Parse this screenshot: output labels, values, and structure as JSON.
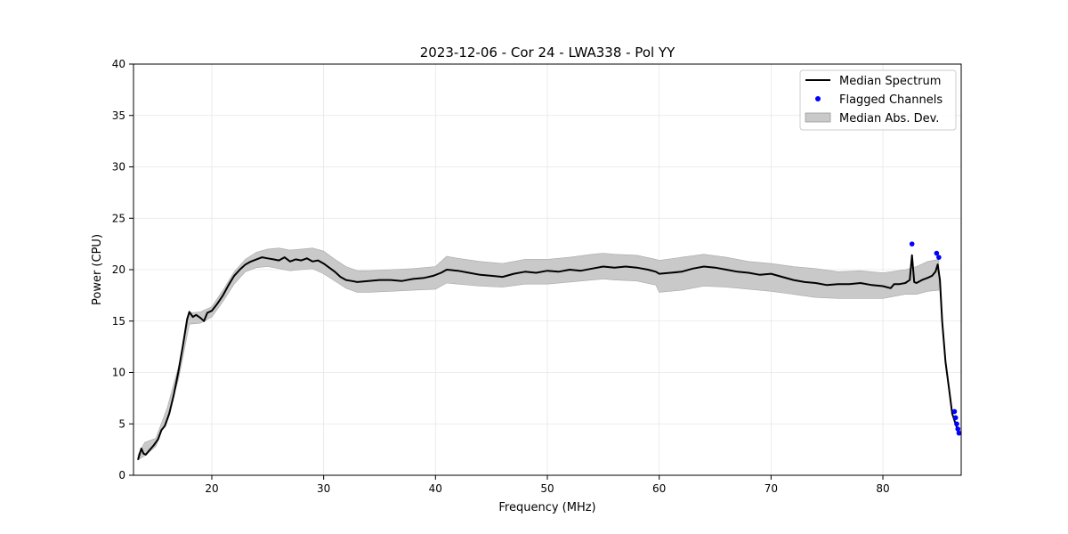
{
  "chart_data": {
    "type": "line",
    "title": "2023-12-06 - Cor 24 - LWA338 - Pol YY",
    "xlabel": "Frequency (MHz)",
    "ylabel": "Power (CPU)",
    "xlim": [
      13,
      87
    ],
    "ylim": [
      0,
      40
    ],
    "xticks": [
      20,
      30,
      40,
      50,
      60,
      70,
      80
    ],
    "yticks": [
      0,
      5,
      10,
      15,
      20,
      25,
      30,
      35,
      40
    ],
    "grid": true,
    "legend": {
      "position": "top-right",
      "entries": [
        "Median Spectrum",
        "Flagged Channels",
        "Median Abs. Dev."
      ]
    },
    "series": [
      {
        "name": "Median Spectrum",
        "kind": "line",
        "color": "#000000",
        "x": [
          13.4,
          13.7,
          13.9,
          14.1,
          14.4,
          14.8,
          15.2,
          15.5,
          15.8,
          16.2,
          16.6,
          17.0,
          17.4,
          17.8,
          18.0,
          18.3,
          18.6,
          19.0,
          19.3,
          19.6,
          20.0,
          20.5,
          21.0,
          21.5,
          22.0,
          22.5,
          23.0,
          23.5,
          24.0,
          24.5,
          25.0,
          25.5,
          26.0,
          26.5,
          27.0,
          27.5,
          28.0,
          28.5,
          29.0,
          29.5,
          30.0,
          30.5,
          31.0,
          31.5,
          32.0,
          32.5,
          33.0,
          34.0,
          35.0,
          36.0,
          37.0,
          38.0,
          39.0,
          39.8,
          40.5,
          41.0,
          42.0,
          43.0,
          44.0,
          45.0,
          46.0,
          47.0,
          48.0,
          49.0,
          50.0,
          51.0,
          52.0,
          53.0,
          54.0,
          55.0,
          56.0,
          57.0,
          58.0,
          59.0,
          59.7,
          60.0,
          61.0,
          62.0,
          63.0,
          64.0,
          65.0,
          66.0,
          67.0,
          68.0,
          69.0,
          70.0,
          71.0,
          72.0,
          73.0,
          74.0,
          75.0,
          76.0,
          77.0,
          78.0,
          79.0,
          80.0,
          80.7,
          81.0,
          81.5,
          82.0,
          82.4,
          82.6,
          82.8,
          83.0,
          83.5,
          84.0,
          84.4,
          84.7,
          84.9,
          85.1,
          85.3,
          85.6,
          85.9,
          86.2,
          86.5,
          86.8
        ],
        "y": [
          1.5,
          2.6,
          2.1,
          2.0,
          2.4,
          2.9,
          3.5,
          4.4,
          4.8,
          6.0,
          7.8,
          10.0,
          12.5,
          15.2,
          15.9,
          15.4,
          15.6,
          15.3,
          15.0,
          15.8,
          16.0,
          16.7,
          17.5,
          18.5,
          19.4,
          20.0,
          20.5,
          20.8,
          21.0,
          21.2,
          21.1,
          21.0,
          20.9,
          21.2,
          20.8,
          21.0,
          20.9,
          21.1,
          20.8,
          20.9,
          20.6,
          20.2,
          19.8,
          19.3,
          19.0,
          18.9,
          18.8,
          18.9,
          19.0,
          19.0,
          18.9,
          19.1,
          19.2,
          19.4,
          19.7,
          20.0,
          19.9,
          19.7,
          19.5,
          19.4,
          19.3,
          19.6,
          19.8,
          19.7,
          19.9,
          19.8,
          20.0,
          19.9,
          20.1,
          20.3,
          20.2,
          20.3,
          20.2,
          20.0,
          19.8,
          19.6,
          19.7,
          19.8,
          20.1,
          20.3,
          20.2,
          20.0,
          19.8,
          19.7,
          19.5,
          19.6,
          19.3,
          19.0,
          18.8,
          18.7,
          18.5,
          18.6,
          18.6,
          18.7,
          18.5,
          18.4,
          18.2,
          18.6,
          18.6,
          18.7,
          19.0,
          21.4,
          18.8,
          18.7,
          19.0,
          19.2,
          19.4,
          19.8,
          20.5,
          19.0,
          15.0,
          11.0,
          8.5,
          6.0,
          5.0,
          4.0
        ]
      },
      {
        "name": "Median Abs. Dev.",
        "kind": "band",
        "color": "#c9c9c9",
        "x": [
          13.4,
          14.0,
          15.0,
          16.0,
          17.0,
          18.0,
          19.0,
          20.0,
          21.0,
          22.0,
          23.0,
          24.0,
          25.0,
          26.0,
          27.0,
          28.0,
          29.0,
          30.0,
          31.0,
          32.0,
          33.0,
          34.0,
          36.0,
          38.0,
          40.0,
          41.0,
          42.0,
          44.0,
          46.0,
          48.0,
          50.0,
          52.0,
          54.0,
          55.0,
          56.0,
          58.0,
          59.7,
          60.0,
          62.0,
          64.0,
          66.0,
          68.0,
          70.0,
          72.0,
          74.0,
          76.0,
          78.0,
          80.0,
          82.0,
          83.0,
          84.0,
          85.0
        ],
        "upper": [
          2.0,
          3.2,
          3.6,
          6.5,
          10.5,
          15.8,
          15.9,
          16.4,
          18.0,
          19.8,
          21.0,
          21.7,
          22.0,
          22.1,
          21.9,
          22.0,
          22.1,
          21.8,
          21.0,
          20.3,
          19.9,
          19.9,
          20.0,
          20.1,
          20.3,
          21.3,
          21.1,
          20.8,
          20.6,
          21.0,
          21.0,
          21.2,
          21.5,
          21.6,
          21.5,
          21.4,
          21.0,
          20.9,
          21.2,
          21.5,
          21.2,
          20.8,
          20.6,
          20.3,
          20.1,
          19.8,
          19.9,
          19.7,
          20.0,
          20.3,
          20.8,
          21.0
        ],
        "lower": [
          1.5,
          1.9,
          2.8,
          5.6,
          9.2,
          14.7,
          14.8,
          15.4,
          16.9,
          18.6,
          19.8,
          20.2,
          20.3,
          20.1,
          19.9,
          20.0,
          20.1,
          19.6,
          18.9,
          18.2,
          17.8,
          17.8,
          17.9,
          18.0,
          18.1,
          18.7,
          18.6,
          18.4,
          18.3,
          18.6,
          18.6,
          18.8,
          19.0,
          19.1,
          19.0,
          18.9,
          18.5,
          17.8,
          18.0,
          18.4,
          18.3,
          18.1,
          17.9,
          17.6,
          17.3,
          17.2,
          17.2,
          17.2,
          17.6,
          17.6,
          17.9,
          18.0
        ]
      },
      {
        "name": "Flagged Channels",
        "kind": "scatter",
        "color": "#0000ff",
        "x": [
          82.6,
          84.8,
          85.0,
          86.4,
          86.5,
          86.6,
          86.7,
          86.8
        ],
        "y": [
          22.5,
          21.6,
          21.2,
          6.2,
          5.6,
          5.0,
          4.5,
          4.1
        ]
      }
    ]
  }
}
